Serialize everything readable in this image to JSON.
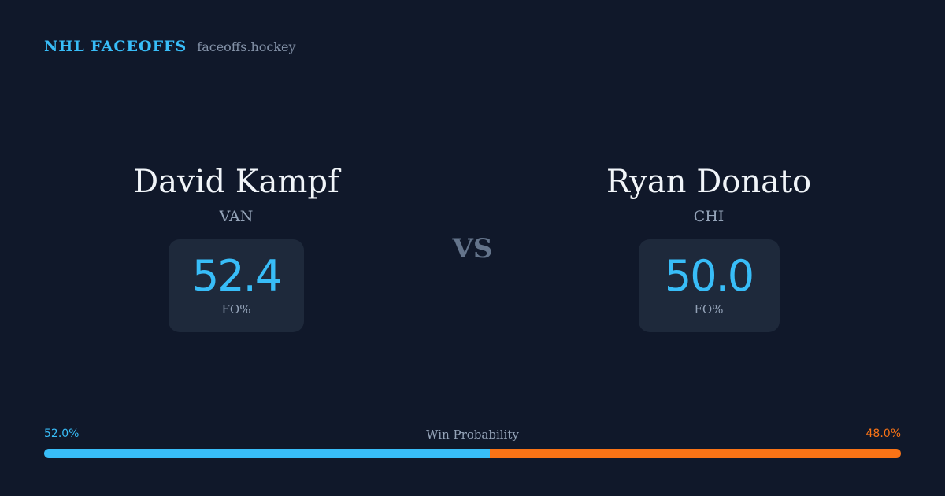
{
  "brand": {
    "name": "NHL FACEOFFS",
    "site": "faceoffs.hockey"
  },
  "matchup": {
    "vs_label": "VS",
    "left_player": {
      "name": "David Kampf",
      "team": "VAN",
      "fo_pct": "52.4",
      "stat_label": "FO%"
    },
    "right_player": {
      "name": "Ryan Donato",
      "team": "CHI",
      "fo_pct": "50.0",
      "stat_label": "FO%"
    }
  },
  "win_probability": {
    "title": "Win Probability",
    "left_label": "52.0%",
    "right_label": "48.0%",
    "left_value": 52.0,
    "right_value": 48.0
  },
  "colors": {
    "background": "#10182a",
    "accent_blue": "#38bdf8",
    "accent_orange": "#f97316",
    "card": "#1e293b"
  }
}
